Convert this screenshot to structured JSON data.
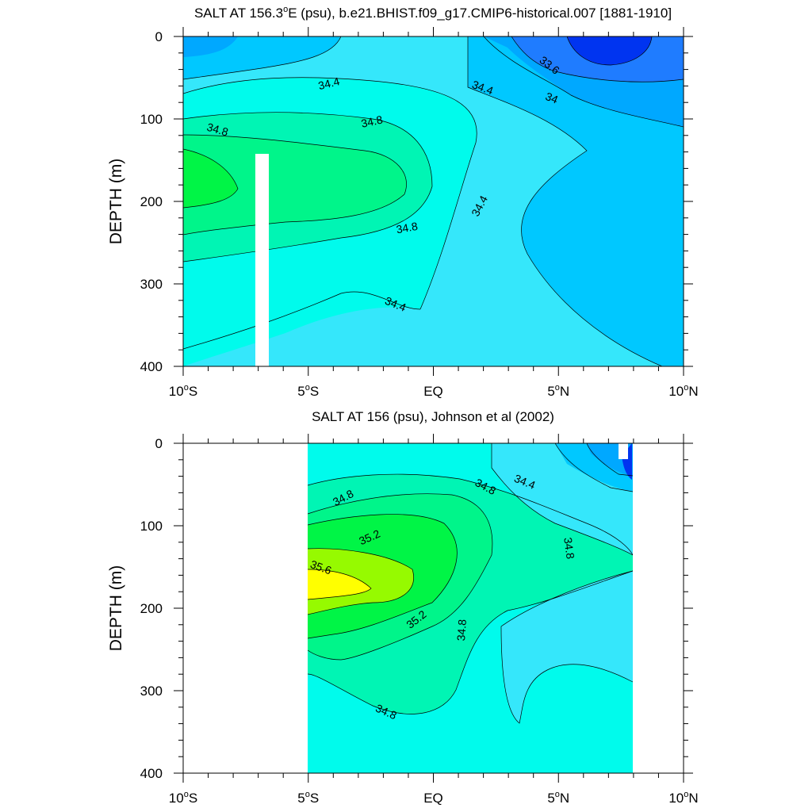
{
  "chart_data": [
    {
      "type": "contour",
      "title": "SALT AT 156.3°E (psu), b.e21.BHIST.f09_g17.CMIP6-historical.007 [1881-1910]",
      "title_parts": {
        "pre": "SALT AT 156.3",
        "sup": "o",
        "post": "E (psu), b.e21.BHIST.f09_g17.CMIP6-historical.007 [1881-1910]"
      },
      "ylabel": "DEPTH (m)",
      "xlim": [
        -10,
        10
      ],
      "ylim": [
        400,
        0
      ],
      "yticks": [
        "0",
        "100",
        "200",
        "300",
        "400"
      ],
      "xticks": [
        {
          "num": "10",
          "sup": "o",
          "hem": "S"
        },
        {
          "num": "5",
          "sup": "o",
          "hem": "S"
        },
        {
          "num": "EQ",
          "sup": "",
          "hem": ""
        },
        {
          "num": "5",
          "sup": "o",
          "hem": "N"
        },
        {
          "num": "10",
          "sup": "o",
          "hem": "N"
        }
      ],
      "contour_labels": [
        "34.4",
        "34.4",
        "34.8",
        "34.8",
        "34.8",
        "34.4",
        "34.4",
        "33.6",
        "34"
      ],
      "contour_interval": 0.2,
      "missing_column_lon": -6.8
    },
    {
      "type": "contour",
      "title": "SALT AT 156 (psu), Johnson et al (2002)",
      "ylabel": "DEPTH (m)",
      "xlim": [
        -10,
        10
      ],
      "ylim": [
        400,
        0
      ],
      "data_range_lon": [
        -5,
        8
      ],
      "yticks": [
        "0",
        "100",
        "200",
        "300",
        "400"
      ],
      "xticks": [
        {
          "num": "10",
          "sup": "o",
          "hem": "S"
        },
        {
          "num": "5",
          "sup": "o",
          "hem": "S"
        },
        {
          "num": "EQ",
          "sup": "",
          "hem": ""
        },
        {
          "num": "5",
          "sup": "o",
          "hem": "N"
        },
        {
          "num": "10",
          "sup": "o",
          "hem": "N"
        }
      ],
      "contour_labels": [
        "34.8",
        "34.8",
        "34.4",
        "35.2",
        "35.6",
        "35.2",
        "34.8",
        "34.8",
        "34.8"
      ],
      "contour_interval": 0.2
    }
  ]
}
